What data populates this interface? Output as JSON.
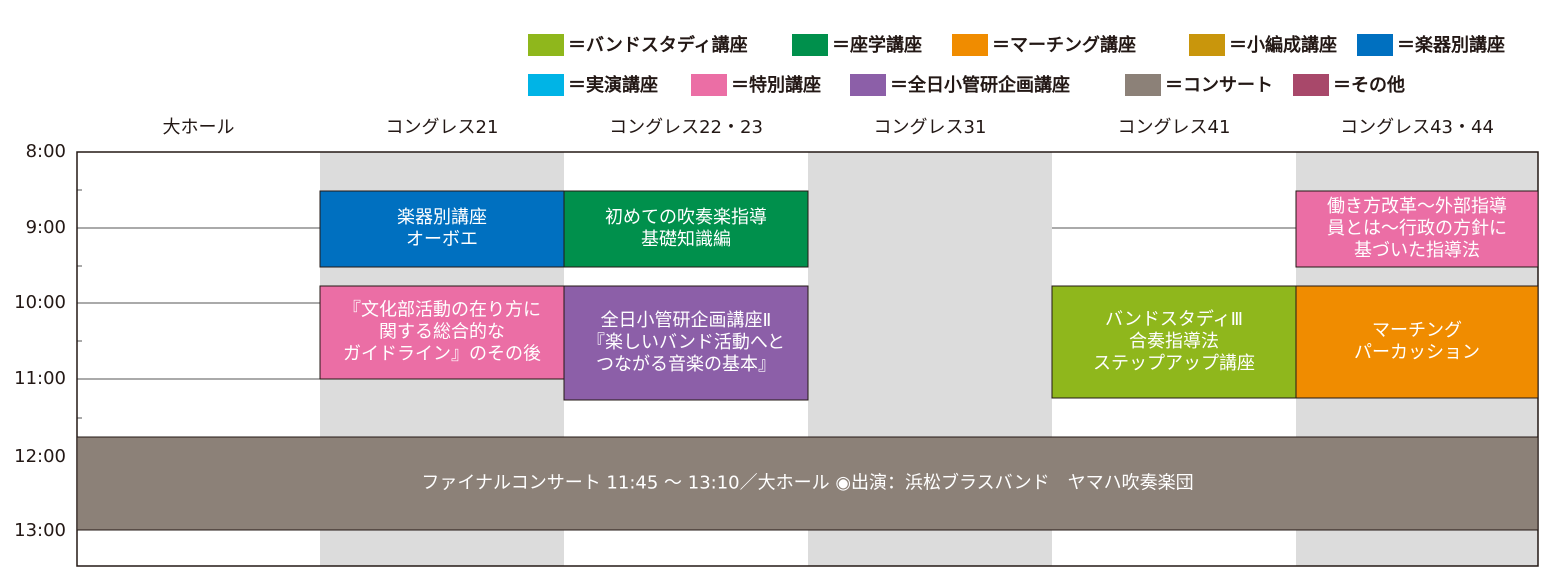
{
  "legend": [
    {
      "label": "＝バンドスタディ講座",
      "color": "#8fb71c"
    },
    {
      "label": "＝座学講座",
      "color": "#00904c"
    },
    {
      "label": "＝マーチング講座",
      "color": "#f08c00"
    },
    {
      "label": "＝小編成講座",
      "color": "#c9960c"
    },
    {
      "label": "＝楽器別講座",
      "color": "#0070c0"
    },
    {
      "label": "＝実演講座",
      "color": "#00b4e6"
    },
    {
      "label": "＝特別講座",
      "color": "#eb6ea5"
    },
    {
      "label": "＝全日小管研企画講座",
      "color": "#8c5fa8"
    },
    {
      "label": "＝コンサート",
      "color": "#8c8178"
    },
    {
      "label": "＝その他",
      "color": "#a8486a"
    }
  ],
  "rooms": [
    "大ホール",
    "コングレス21",
    "コングレス22・23",
    "コングレス31",
    "コングレス41",
    "コングレス43・44"
  ],
  "times": [
    "8:00",
    "9:00",
    "10:00",
    "11:00",
    "12:00",
    "13:00"
  ],
  "events": [
    {
      "lines": [
        "楽器別講座",
        "オーボエ"
      ],
      "color": "#0070c0"
    },
    {
      "lines": [
        "初めての吹奏楽指導",
        "基礎知識編"
      ],
      "color": "#00904c"
    },
    {
      "lines": [
        "働き方改革～外部指導",
        "員とは～行政の方針に",
        "基づいた指導法"
      ],
      "color": "#eb6ea5"
    },
    {
      "lines": [
        "『文化部活動の在り方に",
        "関する総合的な",
        "ガイドライン』のその後"
      ],
      "color": "#eb6ea5"
    },
    {
      "lines": [
        "全日小管研企画講座Ⅱ",
        "『楽しいバンド活動へと",
        "つながる音楽の基本』"
      ],
      "color": "#8c5fa8"
    },
    {
      "lines": [
        "バンドスタディⅢ",
        "合奏指導法",
        "ステップアップ講座"
      ],
      "color": "#8fb71c"
    },
    {
      "lines": [
        "マーチング",
        "パーカッション"
      ],
      "color": "#f08c00"
    },
    {
      "lines": [
        "ファイナルコンサート 11:45 ～ 13:10／大ホール ◉出演：浜松ブラスバンド　ヤマハ吹奏楽団"
      ],
      "color": "#8c8178"
    }
  ]
}
